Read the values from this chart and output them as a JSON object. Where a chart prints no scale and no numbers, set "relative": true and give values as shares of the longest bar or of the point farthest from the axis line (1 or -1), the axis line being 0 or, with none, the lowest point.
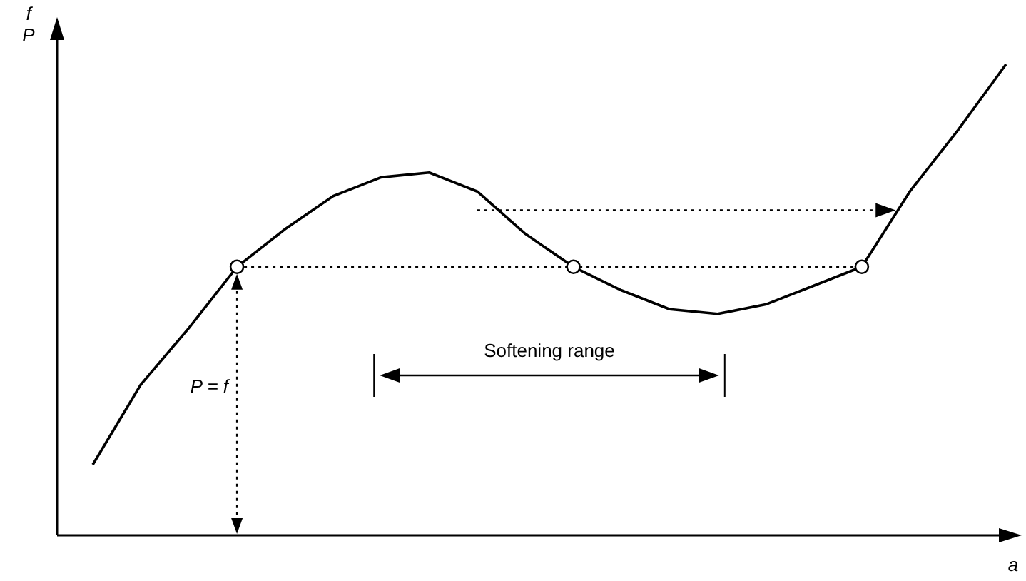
{
  "chart_data": {
    "type": "line",
    "relative": true,
    "xlabel": "a",
    "ylabel": "f\nP",
    "categories": [
      null,
      null,
      null,
      null,
      null,
      null,
      null,
      null,
      null,
      null,
      null,
      null,
      null,
      null,
      null,
      null,
      null,
      null,
      null,
      null
    ],
    "series": [
      {
        "color": "#000000",
        "values": [
          0.15,
          0.32,
          0.44,
          0.57,
          0.65,
          0.72,
          0.76,
          0.77,
          0.73,
          0.64,
          0.57,
          0.52,
          0.48,
          0.47,
          0.49,
          0.53,
          0.57,
          0.73,
          0.86,
          1
        ]
      }
    ],
    "ref_lines": [
      {
        "axis": "y",
        "value": 0.57,
        "line_style": "dotted"
      },
      {
        "axis": "y",
        "value": 0.69,
        "line_style": "dotted"
      }
    ],
    "annotations": [
      "Softening range",
      "P = f"
    ]
  }
}
